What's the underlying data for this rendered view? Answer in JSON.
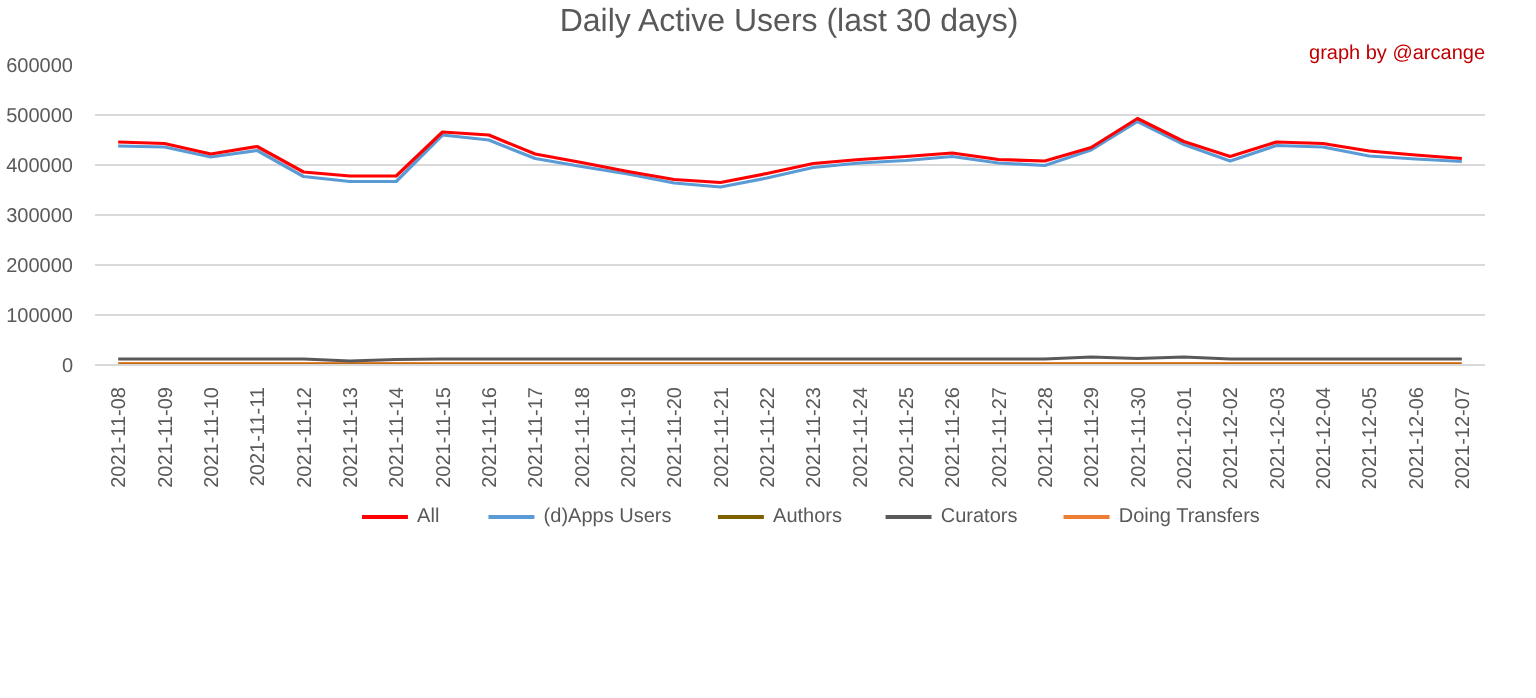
{
  "chart_data": {
    "type": "line",
    "title": "Daily Active Users (last 30 days)",
    "annotations": [
      "graph by @arcange"
    ],
    "categories": [
      "2021-11-08",
      "2021-11-09",
      "2021-11-10",
      "2021-11-11",
      "2021-11-12",
      "2021-11-13",
      "2021-11-14",
      "2021-11-15",
      "2021-11-16",
      "2021-11-17",
      "2021-11-18",
      "2021-11-19",
      "2021-11-20",
      "2021-11-21",
      "2021-11-22",
      "2021-11-23",
      "2021-11-24",
      "2021-11-25",
      "2021-11-26",
      "2021-11-27",
      "2021-11-28",
      "2021-11-29",
      "2021-11-30",
      "2021-12-01",
      "2021-12-02",
      "2021-12-03",
      "2021-12-04",
      "2021-12-05",
      "2021-12-06",
      "2021-12-07"
    ],
    "series": [
      {
        "name": "All",
        "color": "#ff0000",
        "values": [
          446000,
          443000,
          422000,
          437000,
          386000,
          378000,
          378000,
          466000,
          460000,
          422000,
          405000,
          387000,
          371000,
          365000,
          383000,
          403000,
          411000,
          417000,
          424000,
          411000,
          408000,
          435000,
          493000,
          447000,
          417000,
          446000,
          443000,
          428000,
          420000,
          413000
        ]
      },
      {
        "name": "(d)Apps Users",
        "color": "#5b9bd5",
        "values": [
          438000,
          436000,
          416000,
          429000,
          377000,
          367000,
          367000,
          460000,
          450000,
          413000,
          397000,
          382000,
          364000,
          356000,
          374000,
          395000,
          404000,
          409000,
          417000,
          404000,
          399000,
          430000,
          487000,
          441000,
          408000,
          439000,
          436000,
          418000,
          412000,
          407000
        ]
      },
      {
        "name": "Authors",
        "color": "#7f6000",
        "values": [
          null,
          null,
          null,
          null,
          null,
          null,
          null,
          null,
          null,
          null,
          null,
          null,
          null,
          null,
          null,
          null,
          null,
          null,
          null,
          null,
          null,
          null,
          null,
          null,
          null,
          null,
          null,
          null,
          null,
          null
        ]
      },
      {
        "name": "Curators",
        "color": "#595959",
        "values": [
          12000,
          12000,
          12000,
          12000,
          12000,
          8000,
          11000,
          12000,
          12000,
          12000,
          12000,
          12000,
          12000,
          12000,
          12000,
          12000,
          12000,
          12000,
          12000,
          12000,
          12000,
          16000,
          13000,
          16000,
          12000,
          12000,
          12000,
          12000,
          12000,
          12000
        ]
      },
      {
        "name": "Doing Transfers",
        "color": "#ed7d31",
        "values": [
          3000,
          3000,
          3000,
          3000,
          3000,
          3000,
          3000,
          3000,
          3000,
          3000,
          3000,
          3000,
          3000,
          3000,
          3000,
          3000,
          3000,
          3000,
          3000,
          3000,
          3000,
          3000,
          3000,
          3000,
          3000,
          3000,
          3000,
          3000,
          3000,
          3000
        ]
      }
    ],
    "ylim": [
      0,
      600000
    ],
    "yticks": [
      0,
      100000,
      200000,
      300000,
      400000,
      500000,
      600000
    ],
    "grid": "y",
    "legend": "bottom",
    "line_style": "solid"
  }
}
